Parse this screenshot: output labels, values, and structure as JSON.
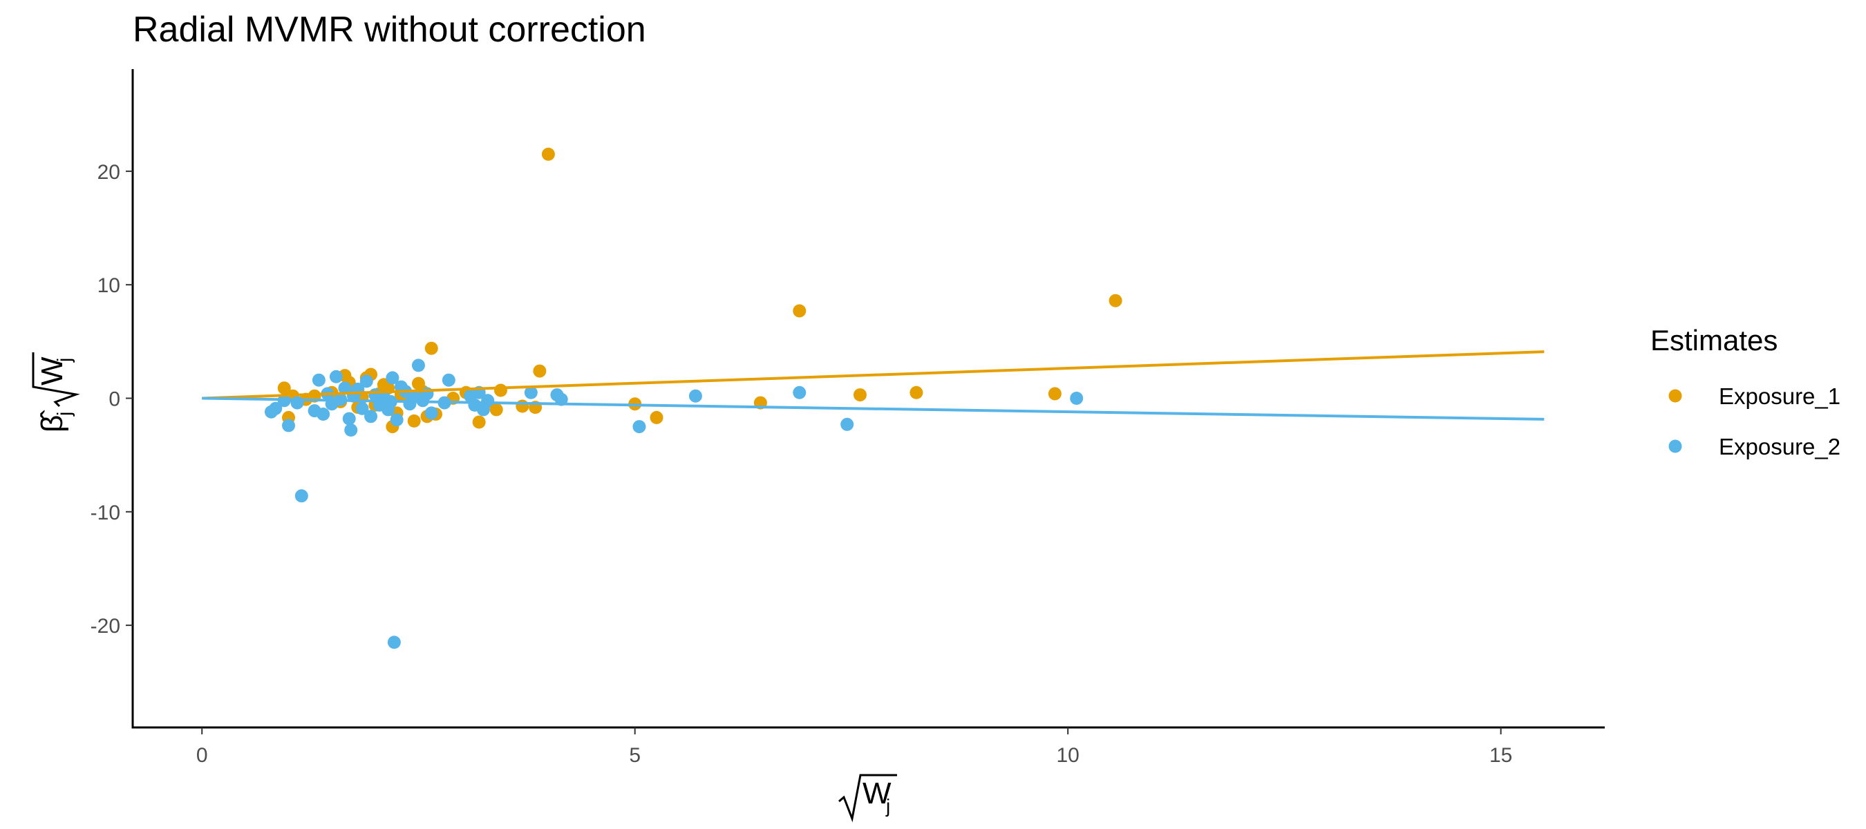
{
  "chart_data": {
    "type": "scatter",
    "title": "Radial MVMR without correction",
    "xlabel": "W",
    "xlabel_subscript": "j",
    "ylabel": "β̂",
    "ylabel_subscript": "j",
    "ylabel_sqrt": "W",
    "ylabel_sqrt_subscript": "j",
    "xlim": [
      -0.8,
      16.2
    ],
    "ylim": [
      -29,
      29
    ],
    "x_ticks": [
      0,
      5,
      10,
      15
    ],
    "x_tick_labels": [
      "0",
      "5",
      "10",
      "15"
    ],
    "y_ticks": [
      -20,
      -10,
      0,
      10,
      20
    ],
    "y_tick_labels": [
      "-20",
      "-10",
      "0",
      "10",
      "20"
    ],
    "grid": false,
    "legend": {
      "title": "Estimates",
      "position": "right"
    },
    "series": [
      {
        "name": "Exposure_1",
        "color": "#E69F00",
        "fit_line": {
          "x": [
            0,
            15.5
          ],
          "y": [
            0,
            4.1
          ]
        },
        "points": [
          [
            0.95,
            0.9
          ],
          [
            1.0,
            -1.7
          ],
          [
            1.05,
            0.2
          ],
          [
            1.2,
            -0.1
          ],
          [
            1.3,
            0.2
          ],
          [
            1.5,
            0.5
          ],
          [
            1.6,
            -0.3
          ],
          [
            1.65,
            2.0
          ],
          [
            1.7,
            1.4
          ],
          [
            1.75,
            0.7
          ],
          [
            1.8,
            -0.8
          ],
          [
            1.85,
            0.1
          ],
          [
            1.9,
            1.8
          ],
          [
            1.95,
            2.1
          ],
          [
            2.0,
            -0.6
          ],
          [
            2.05,
            0.4
          ],
          [
            2.1,
            1.2
          ],
          [
            2.15,
            0.9
          ],
          [
            2.2,
            -2.5
          ],
          [
            2.25,
            -1.3
          ],
          [
            2.3,
            0.3
          ],
          [
            2.4,
            -0.4
          ],
          [
            2.45,
            -2.0
          ],
          [
            2.5,
            1.3
          ],
          [
            2.55,
            0.6
          ],
          [
            2.6,
            -1.6
          ],
          [
            2.65,
            4.4
          ],
          [
            2.7,
            -1.4
          ],
          [
            2.9,
            0.0
          ],
          [
            3.05,
            0.5
          ],
          [
            3.2,
            -2.1
          ],
          [
            3.3,
            -0.3
          ],
          [
            3.4,
            -1.0
          ],
          [
            3.45,
            0.7
          ],
          [
            3.7,
            -0.7
          ],
          [
            3.85,
            -0.8
          ],
          [
            3.9,
            2.4
          ],
          [
            4.0,
            21.5
          ],
          [
            5.0,
            -0.5
          ],
          [
            5.25,
            -1.7
          ],
          [
            6.45,
            -0.4
          ],
          [
            6.9,
            7.7
          ],
          [
            7.6,
            0.3
          ],
          [
            8.25,
            0.5
          ],
          [
            9.85,
            0.4
          ],
          [
            10.55,
            8.6
          ]
        ]
      },
      {
        "name": "Exposure_2",
        "color": "#56B4E9",
        "fit_line": {
          "x": [
            0,
            15.5
          ],
          "y": [
            0,
            -1.85
          ]
        },
        "points": [
          [
            0.8,
            -1.2
          ],
          [
            0.85,
            -0.9
          ],
          [
            0.95,
            -0.2
          ],
          [
            1.0,
            -2.4
          ],
          [
            1.1,
            -0.4
          ],
          [
            1.15,
            -8.6
          ],
          [
            1.3,
            -1.1
          ],
          [
            1.35,
            1.6
          ],
          [
            1.4,
            -1.4
          ],
          [
            1.45,
            0.4
          ],
          [
            1.5,
            -0.5
          ],
          [
            1.55,
            1.9
          ],
          [
            1.6,
            -0.1
          ],
          [
            1.65,
            0.9
          ],
          [
            1.7,
            -1.8
          ],
          [
            1.72,
            -2.8
          ],
          [
            1.75,
            0.2
          ],
          [
            1.8,
            0.8
          ],
          [
            1.85,
            -0.9
          ],
          [
            1.9,
            1.5
          ],
          [
            1.95,
            -1.6
          ],
          [
            2.0,
            0.3
          ],
          [
            2.05,
            -0.6
          ],
          [
            2.1,
            0.1
          ],
          [
            2.15,
            -1.0
          ],
          [
            2.18,
            -0.3
          ],
          [
            2.2,
            1.8
          ],
          [
            2.22,
            -21.5
          ],
          [
            2.25,
            -1.9
          ],
          [
            2.3,
            1.0
          ],
          [
            2.35,
            0.6
          ],
          [
            2.4,
            -0.5
          ],
          [
            2.45,
            0.2
          ],
          [
            2.5,
            2.9
          ],
          [
            2.55,
            -0.2
          ],
          [
            2.6,
            0.4
          ],
          [
            2.65,
            -1.3
          ],
          [
            2.8,
            -0.4
          ],
          [
            2.85,
            1.6
          ],
          [
            3.1,
            0.2
          ],
          [
            3.15,
            -0.6
          ],
          [
            3.2,
            0.5
          ],
          [
            3.25,
            -1.0
          ],
          [
            3.3,
            -0.2
          ],
          [
            3.8,
            0.5
          ],
          [
            4.1,
            0.3
          ],
          [
            4.15,
            -0.1
          ],
          [
            5.05,
            -2.5
          ],
          [
            5.7,
            0.2
          ],
          [
            6.9,
            0.5
          ],
          [
            7.45,
            -2.3
          ],
          [
            10.1,
            0.0
          ]
        ]
      }
    ]
  }
}
